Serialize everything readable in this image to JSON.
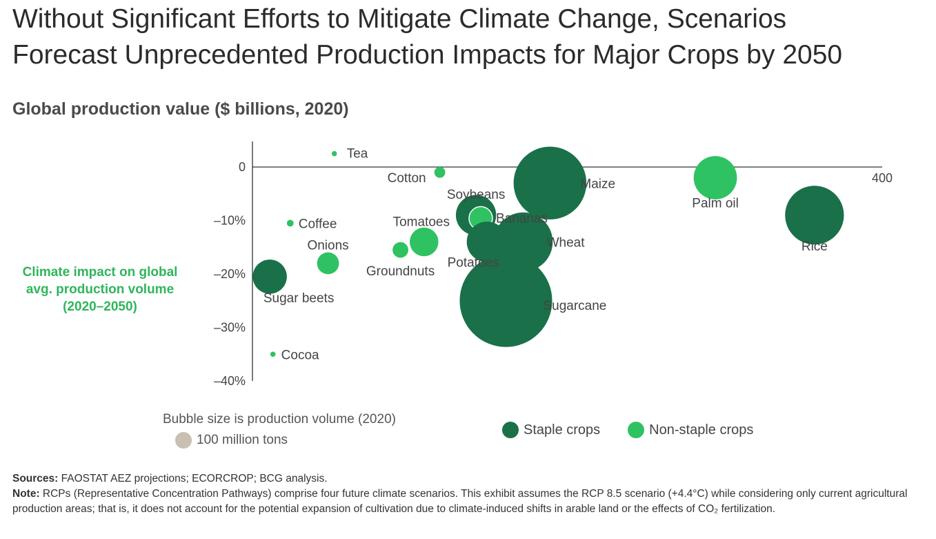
{
  "title_line1": "Without Significant Efforts to Mitigate Climate Change, Scenarios",
  "title_line2": "Forecast Unprecedented Production Impacts for Major Crops by 2050",
  "subtitle": "Global production value ($ billions, 2020)",
  "ylabel_line1": "Climate impact on global",
  "ylabel_line2": "avg. production volume",
  "ylabel_line3": "(2020–2050)",
  "size_note": "Bubble size is production volume (2020)",
  "size_legend_label": "100 million tons",
  "legend": {
    "staple": "Staple crops",
    "nonstaple": "Non-staple crops"
  },
  "footer": {
    "sources_label": "Sources:",
    "sources_text": " FAOSTAT AEZ projections; ECORCROP; BCG analysis.",
    "note_label": "Note:",
    "note_text": " RCPs (Representative Concentration Pathways) comprise four future climate scenarios. This exhibit assumes the RCP 8.5 scenario (+4.4°C) while considering only current agricultural production areas; that is, it does not account for the potential expansion of cultivation due to climate-induced shifts in arable land or the effects of CO₂ fertilization."
  },
  "colors": {
    "staple": "#1a7049",
    "nonstaple": "#2fc262",
    "size_ref": "#c9bfb3",
    "axis": "#333333"
  },
  "chart_data": {
    "type": "scatter",
    "title": "Global production value ($ billions, 2020)",
    "xlabel": "",
    "ylabel": "Climate impact on global avg. production volume (2020–2050)",
    "xlim": [
      0,
      400
    ],
    "ylim": [
      -40,
      4
    ],
    "x_tick_labels": [
      "400"
    ],
    "y_tick_labels": [
      "0",
      "–10%",
      "–20%",
      "–30%",
      "–40%"
    ],
    "size_legend": {
      "label": "100 million tons",
      "volume": 100
    },
    "points": [
      {
        "name": "Tea",
        "x": 52,
        "y": 2.5,
        "volume": 6,
        "group": "nonstaple"
      },
      {
        "name": "Cotton",
        "x": 119,
        "y": -1,
        "volume": 26,
        "group": "nonstaple"
      },
      {
        "name": "Maize",
        "x": 189,
        "y": -3,
        "volume": 1160,
        "group": "staple"
      },
      {
        "name": "Palm oil",
        "x": 294,
        "y": -2,
        "volume": 410,
        "group": "nonstaple"
      },
      {
        "name": "Soybeans",
        "x": 142,
        "y": -9,
        "volume": 355,
        "group": "staple"
      },
      {
        "name": "Bananas",
        "x": 145,
        "y": -9.6,
        "volume": 120,
        "group": "nonstaple"
      },
      {
        "name": "Coffee",
        "x": 24,
        "y": -10.5,
        "volume": 10,
        "group": "nonstaple"
      },
      {
        "name": "Tomatoes",
        "x": 109,
        "y": -14,
        "volume": 180,
        "group": "nonstaple"
      },
      {
        "name": "Potatoes",
        "x": 149,
        "y": -14,
        "volume": 360,
        "group": "staple"
      },
      {
        "name": "Wheat",
        "x": 172,
        "y": -14,
        "volume": 760,
        "group": "staple"
      },
      {
        "name": "Rice",
        "x": 357,
        "y": -9,
        "volume": 756,
        "group": "staple"
      },
      {
        "name": "Onions",
        "x": 48,
        "y": -18,
        "volume": 105,
        "group": "nonstaple"
      },
      {
        "name": "Groundnuts",
        "x": 94,
        "y": -15.5,
        "volume": 54,
        "group": "nonstaple"
      },
      {
        "name": "Sugar beets",
        "x": 11,
        "y": -20.5,
        "volume": 255,
        "group": "staple"
      },
      {
        "name": "Sugarcane",
        "x": 161,
        "y": -25,
        "volume": 1870,
        "group": "staple"
      },
      {
        "name": "Cocoa",
        "x": 13,
        "y": -35,
        "volume": 6,
        "group": "nonstaple"
      }
    ]
  }
}
